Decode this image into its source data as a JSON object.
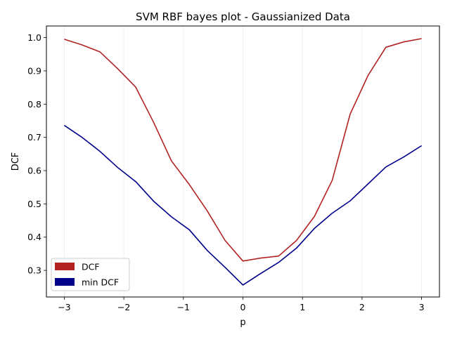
{
  "chart_data": {
    "type": "line",
    "title": "SVM RBF bayes plot - Gaussianized Data",
    "xlabel": "p",
    "ylabel": "DCF",
    "xlim": [
      -3.3,
      3.3
    ],
    "ylim": [
      0.22,
      1.035
    ],
    "xticks": [
      -3,
      -2,
      -1,
      0,
      1,
      2,
      3
    ],
    "xtick_labels": [
      "−3",
      "−2",
      "−1",
      "0",
      "1",
      "2",
      "3"
    ],
    "yticks": [
      0.3,
      0.4,
      0.5,
      0.6,
      0.7,
      0.8,
      0.9,
      1.0
    ],
    "ytick_labels": [
      "0.3",
      "0.4",
      "0.5",
      "0.6",
      "0.7",
      "0.8",
      "0.9",
      "1.0"
    ],
    "grid": "vertical, faint",
    "legend_position": "lower-left",
    "x": [
      -3.0,
      -2.7,
      -2.4,
      -2.1,
      -1.8,
      -1.5,
      -1.2,
      -0.9,
      -0.6,
      -0.3,
      0.0,
      0.3,
      0.6,
      0.9,
      1.2,
      1.5,
      1.8,
      2.1,
      2.4,
      2.7,
      3.0
    ],
    "series": [
      {
        "name": "DCF",
        "color": "#b22222",
        "values": [
          0.995,
          0.978,
          0.957,
          0.906,
          0.851,
          0.745,
          0.629,
          0.558,
          0.479,
          0.39,
          0.328,
          0.337,
          0.343,
          0.39,
          0.462,
          0.571,
          0.77,
          0.886,
          0.971,
          0.987,
          0.997
        ]
      },
      {
        "name": "min DCF",
        "color": "#00008b",
        "values": [
          0.736,
          0.7,
          0.658,
          0.609,
          0.567,
          0.508,
          0.461,
          0.422,
          0.36,
          0.309,
          0.256,
          0.291,
          0.324,
          0.367,
          0.426,
          0.472,
          0.509,
          0.56,
          0.611,
          0.641,
          0.675
        ]
      }
    ]
  }
}
